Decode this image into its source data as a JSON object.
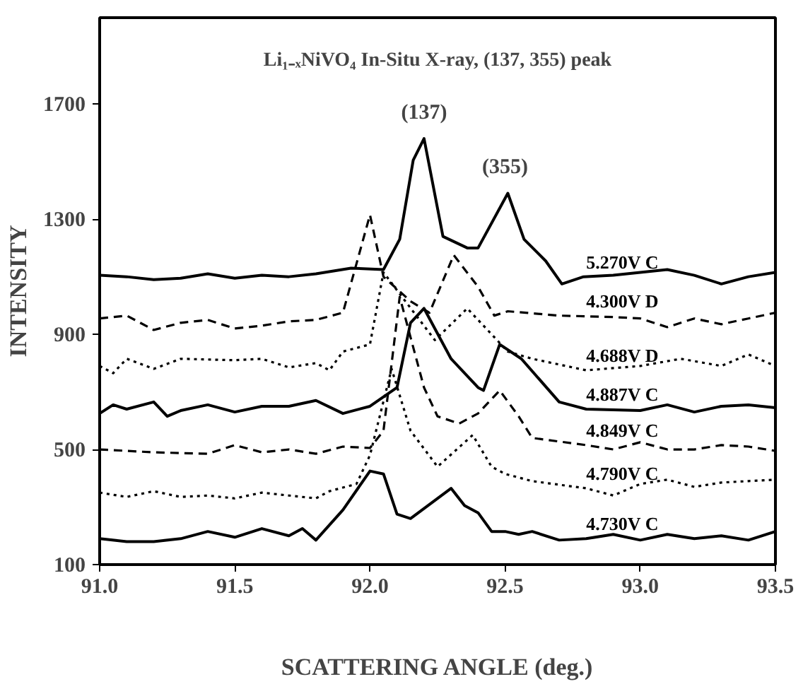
{
  "chart_data": {
    "type": "line",
    "title": "Li₁₋ₓNiVO₄ In-Situ X-ray, (137, 355) peak",
    "xlabel": "SCATTERING ANGLE (deg.)",
    "ylabel": "INTENSITY",
    "xlim": [
      91.0,
      93.5
    ],
    "ylim": [
      100,
      2000
    ],
    "xticks": [
      {
        "value": 91.0,
        "label": "91.0"
      },
      {
        "value": 91.5,
        "label": "91.5"
      },
      {
        "value": 92.0,
        "label": "92.0"
      },
      {
        "value": 92.5,
        "label": "92.5"
      },
      {
        "value": 93.0,
        "label": "93.0"
      },
      {
        "value": 93.5,
        "label": "93.5"
      }
    ],
    "yticks": [
      100,
      500,
      900,
      1300,
      1700
    ],
    "grid": false,
    "marker": "none",
    "annotations": [
      {
        "text": "(137)",
        "x": 92.2,
        "y": 1580
      },
      {
        "text": "(355)",
        "x": 92.5,
        "y": 1390
      }
    ],
    "series": [
      {
        "name": "5.270V  C",
        "color": "#000000",
        "line_style": "solid",
        "x": [
          91.0,
          91.1,
          91.2,
          91.3,
          91.4,
          91.5,
          91.6,
          91.7,
          91.8,
          91.93,
          92.05,
          92.11,
          92.16,
          92.2,
          92.27,
          92.36,
          92.4,
          92.51,
          92.57,
          92.65,
          92.71,
          92.79,
          92.9,
          93.0,
          93.1,
          93.2,
          93.3,
          93.4,
          93.5
        ],
        "values": [
          1105,
          1100,
          1090,
          1095,
          1110,
          1095,
          1105,
          1100,
          1110,
          1130,
          1125,
          1230,
          1505,
          1580,
          1240,
          1200,
          1200,
          1390,
          1230,
          1155,
          1075,
          1100,
          1105,
          1115,
          1125,
          1105,
          1075,
          1100,
          1115
        ]
      },
      {
        "name": "4.300V  D",
        "color": "#000000",
        "line_style": "dashed",
        "x": [
          91.0,
          91.1,
          91.2,
          91.3,
          91.4,
          91.5,
          91.6,
          91.7,
          91.8,
          91.9,
          92.0,
          92.05,
          92.15,
          92.22,
          92.31,
          92.4,
          92.46,
          92.51,
          92.7,
          92.9,
          93.0,
          93.1,
          93.2,
          93.3,
          93.4,
          93.5
        ],
        "values": [
          955,
          965,
          915,
          940,
          950,
          920,
          930,
          945,
          950,
          975,
          1315,
          1100,
          1015,
          975,
          1175,
          1065,
          965,
          980,
          965,
          960,
          955,
          925,
          955,
          935,
          955,
          975
        ]
      },
      {
        "name": "4.688V  D",
        "color": "#000000",
        "line_style": "dotted",
        "x": [
          91.0,
          91.05,
          91.1,
          91.2,
          91.3,
          91.5,
          91.6,
          91.7,
          91.8,
          91.85,
          91.9,
          92.0,
          92.05,
          92.24,
          92.36,
          92.51,
          92.6,
          92.8,
          93.0,
          93.15,
          93.3,
          93.4,
          93.5
        ],
        "values": [
          790,
          765,
          815,
          780,
          815,
          810,
          815,
          785,
          800,
          775,
          840,
          865,
          1115,
          880,
          990,
          840,
          815,
          775,
          790,
          815,
          790,
          830,
          790
        ]
      },
      {
        "name": "4.887V  C",
        "color": "#000000",
        "line_style": "solid",
        "x": [
          91.0,
          91.05,
          91.1,
          91.2,
          91.25,
          91.3,
          91.4,
          91.5,
          91.6,
          91.7,
          91.8,
          91.9,
          92.0,
          92.1,
          92.15,
          92.2,
          92.3,
          92.4,
          92.42,
          92.48,
          92.56,
          92.7,
          92.8,
          93.0,
          93.1,
          93.2,
          93.3,
          93.4,
          93.5
        ],
        "values": [
          625,
          655,
          640,
          665,
          615,
          635,
          655,
          630,
          650,
          650,
          670,
          625,
          650,
          715,
          940,
          990,
          815,
          715,
          705,
          865,
          815,
          665,
          640,
          635,
          655,
          630,
          650,
          655,
          645
        ]
      },
      {
        "name": "4.849V  C",
        "color": "#000000",
        "line_style": "dashed",
        "x": [
          91.0,
          91.2,
          91.4,
          91.5,
          91.6,
          91.7,
          91.8,
          91.9,
          92.0,
          92.05,
          92.11,
          92.2,
          92.25,
          92.33,
          92.4,
          92.48,
          92.55,
          92.6,
          92.8,
          92.9,
          93.0,
          93.1,
          93.2,
          93.3,
          93.4,
          93.5
        ],
        "values": [
          500,
          490,
          485,
          515,
          490,
          500,
          485,
          510,
          505,
          565,
          1030,
          715,
          615,
          590,
          625,
          705,
          615,
          540,
          515,
          500,
          525,
          500,
          500,
          515,
          510,
          495
        ]
      },
      {
        "name": "4.790V  C",
        "color": "#000000",
        "line_style": "dotted",
        "x": [
          91.0,
          91.1,
          91.2,
          91.3,
          91.4,
          91.5,
          91.6,
          91.7,
          91.8,
          91.85,
          91.95,
          92.0,
          92.08,
          92.15,
          92.25,
          92.38,
          92.45,
          92.5,
          92.6,
          92.8,
          92.9,
          93.0,
          93.1,
          93.2,
          93.3,
          93.4,
          93.5
        ],
        "values": [
          350,
          335,
          355,
          335,
          340,
          330,
          350,
          340,
          330,
          355,
          380,
          480,
          780,
          565,
          440,
          550,
          440,
          415,
          390,
          365,
          340,
          380,
          395,
          370,
          385,
          390,
          395
        ]
      },
      {
        "name": "4.730V  C",
        "color": "#000000",
        "line_style": "solid",
        "x": [
          91.0,
          91.1,
          91.2,
          91.3,
          91.4,
          91.5,
          91.6,
          91.7,
          91.75,
          91.8,
          91.9,
          92.0,
          92.05,
          92.1,
          92.15,
          92.3,
          92.35,
          92.4,
          92.45,
          92.5,
          92.55,
          92.6,
          92.7,
          92.8,
          92.9,
          93.0,
          93.1,
          93.2,
          93.3,
          93.4,
          93.5
        ],
        "values": [
          190,
          180,
          180,
          190,
          215,
          195,
          225,
          200,
          225,
          185,
          290,
          425,
          415,
          275,
          260,
          365,
          305,
          280,
          215,
          215,
          205,
          215,
          185,
          190,
          205,
          185,
          205,
          190,
          200,
          185,
          215
        ]
      }
    ]
  }
}
